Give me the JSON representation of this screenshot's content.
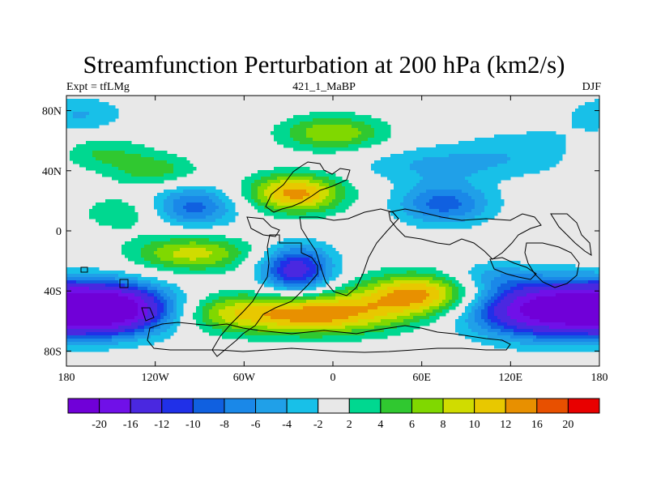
{
  "title": "Streamfunction Perturbation at 200 hPa (km2/s)",
  "left_string": "Expt = tfLMg",
  "center_string": "421_1_MaBP",
  "right_string": "DJF",
  "chart_data": {
    "type": "contour-map",
    "projection": "cylindrical-equidistant",
    "x_range": [
      -180,
      180
    ],
    "y_range": [
      -90,
      90
    ],
    "x_ticks": [
      {
        "value": -180,
        "label": "180"
      },
      {
        "value": -120,
        "label": "120W"
      },
      {
        "value": -60,
        "label": "60W"
      },
      {
        "value": 0,
        "label": "0"
      },
      {
        "value": 60,
        "label": "60E"
      },
      {
        "value": 120,
        "label": "120E"
      },
      {
        "value": 180,
        "label": "180"
      }
    ],
    "y_ticks": [
      {
        "value": 80,
        "label": "80N"
      },
      {
        "value": 40,
        "label": "40N"
      },
      {
        "value": 0,
        "label": "0"
      },
      {
        "value": -40,
        "label": "40S"
      },
      {
        "value": -80,
        "label": "80S"
      }
    ],
    "levels": [
      -20,
      -16,
      -12,
      -10,
      -8,
      -6,
      -4,
      -2,
      2,
      4,
      6,
      8,
      10,
      12,
      16,
      20
    ],
    "colors": [
      "#7000d8",
      "#7010e8",
      "#4a28e0",
      "#2030e8",
      "#1060e0",
      "#1a88e8",
      "#20a0e8",
      "#18c0e8",
      "#e8e8e8",
      "#00d890",
      "#30c830",
      "#80d800",
      "#d0dc00",
      "#e8c800",
      "#e89000",
      "#e85000",
      "#e80000"
    ],
    "background": "#e8e8e8",
    "features": [
      {
        "lon": -150,
        "lat": -52,
        "value": -22,
        "lonw": 40,
        "latw": 16
      },
      {
        "lon": 150,
        "lat": -52,
        "value": -24,
        "lonw": 55,
        "latw": 18
      },
      {
        "lon": -25,
        "lat": -26,
        "value": -14,
        "lonw": 24,
        "latw": 16
      },
      {
        "lon": -95,
        "lat": 16,
        "value": -9,
        "lonw": 30,
        "latw": 14
      },
      {
        "lon": 75,
        "lat": 18,
        "value": -9,
        "lonw": 32,
        "latw": 14
      },
      {
        "lon": 70,
        "lat": 44,
        "value": -4,
        "lonw": 60,
        "latw": 12
      },
      {
        "lon": 140,
        "lat": 55,
        "value": -3,
        "lonw": 60,
        "latw": 16
      },
      {
        "lon": -170,
        "lat": 78,
        "value": -4,
        "lonw": 30,
        "latw": 12
      },
      {
        "lon": 105,
        "lat": -30,
        "value": -4,
        "lonw": 30,
        "latw": 10
      },
      {
        "lon": -25,
        "lat": 25,
        "value": 13,
        "lonw": 32,
        "latw": 13
      },
      {
        "lon": 0,
        "lat": 65,
        "value": 8,
        "lonw": 35,
        "latw": 12
      },
      {
        "lon": -95,
        "lat": -15,
        "value": 9,
        "lonw": 40,
        "latw": 12
      },
      {
        "lon": -15,
        "lat": -55,
        "value": 14,
        "lonw": 60,
        "latw": 14
      },
      {
        "lon": 60,
        "lat": -42,
        "value": 13,
        "lonw": 40,
        "latw": 14
      },
      {
        "lon": -140,
        "lat": 12,
        "value": 4,
        "lonw": 30,
        "latw": 12
      },
      {
        "lon": -160,
        "lat": 52,
        "value": 5,
        "lonw": 35,
        "latw": 12
      },
      {
        "lon": -75,
        "lat": -55,
        "value": 4,
        "lonw": 30,
        "latw": 12
      },
      {
        "lon": -120,
        "lat": 40,
        "value": 5,
        "lonw": 30,
        "latw": 11
      }
    ]
  },
  "colorbar_labels": [
    "-20",
    "-16",
    "-12",
    "-10",
    "-8",
    "-6",
    "-4",
    "-2",
    "2",
    "4",
    "6",
    "8",
    "10",
    "12",
    "16",
    "20"
  ]
}
